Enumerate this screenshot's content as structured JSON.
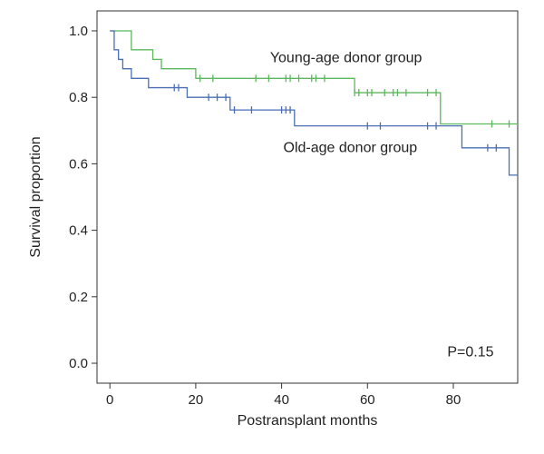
{
  "chart_data": {
    "type": "line",
    "subtype": "kaplan-meier-step",
    "title": "",
    "xlabel": "Postransplant months",
    "ylabel": "Survival proportion",
    "xlim": [
      -3,
      95
    ],
    "ylim": [
      -0.06,
      1.06
    ],
    "x_ticks": [
      0,
      20,
      40,
      60,
      80
    ],
    "x_tick_labels": [
      "0",
      "20",
      "40",
      "60",
      "80"
    ],
    "y_ticks": [
      0.0,
      0.2,
      0.4,
      0.6,
      0.8,
      1.0
    ],
    "y_tick_labels": [
      "0.0",
      "0.2",
      "0.4",
      "0.6",
      "0.8",
      "1.0"
    ],
    "grid": false,
    "series": [
      {
        "name": "Young-age donor group",
        "color": "#5cb85c",
        "steps": [
          [
            0,
            1.0
          ],
          [
            5,
            0.943
          ],
          [
            10,
            0.914
          ],
          [
            12,
            0.886
          ],
          [
            20,
            0.857
          ],
          [
            57,
            0.814
          ],
          [
            77,
            0.72
          ],
          [
            95,
            0.72
          ]
        ],
        "censored": [
          [
            21,
            0.857
          ],
          [
            24,
            0.857
          ],
          [
            34,
            0.857
          ],
          [
            37,
            0.857
          ],
          [
            41,
            0.857
          ],
          [
            42,
            0.857
          ],
          [
            44,
            0.857
          ],
          [
            47,
            0.857
          ],
          [
            48,
            0.857
          ],
          [
            50,
            0.857
          ],
          [
            57,
            0.814
          ],
          [
            58,
            0.814
          ],
          [
            60,
            0.814
          ],
          [
            61,
            0.814
          ],
          [
            64,
            0.814
          ],
          [
            66,
            0.814
          ],
          [
            67,
            0.814
          ],
          [
            69,
            0.814
          ],
          [
            74,
            0.814
          ],
          [
            76,
            0.814
          ],
          [
            89,
            0.72
          ],
          [
            93,
            0.72
          ]
        ]
      },
      {
        "name": "Old-age donor group",
        "color": "#4a6fb5",
        "steps": [
          [
            0,
            1.0
          ],
          [
            1,
            0.943
          ],
          [
            2,
            0.914
          ],
          [
            3,
            0.886
          ],
          [
            5,
            0.857
          ],
          [
            9,
            0.829
          ],
          [
            18,
            0.8
          ],
          [
            28,
            0.762
          ],
          [
            43,
            0.714
          ],
          [
            82,
            0.648
          ],
          [
            93,
            0.566
          ],
          [
            95,
            0.566
          ]
        ],
        "censored": [
          [
            15,
            0.829
          ],
          [
            16,
            0.829
          ],
          [
            23,
            0.8
          ],
          [
            25,
            0.8
          ],
          [
            27,
            0.8
          ],
          [
            29,
            0.762
          ],
          [
            33,
            0.762
          ],
          [
            40,
            0.762
          ],
          [
            41,
            0.762
          ],
          [
            42,
            0.762
          ],
          [
            60,
            0.714
          ],
          [
            63,
            0.714
          ],
          [
            74,
            0.714
          ],
          [
            76,
            0.714
          ],
          [
            88,
            0.648
          ],
          [
            90,
            0.648
          ]
        ]
      }
    ],
    "annotations": [
      {
        "text": "Young-age donor group",
        "x": 55,
        "y": 0.905,
        "series": 0
      },
      {
        "text": "Old-age donor group",
        "x": 56,
        "y": 0.635,
        "series": 1
      },
      {
        "text": "P=0.15",
        "x": 84,
        "y": 0.02,
        "series": null
      }
    ]
  }
}
